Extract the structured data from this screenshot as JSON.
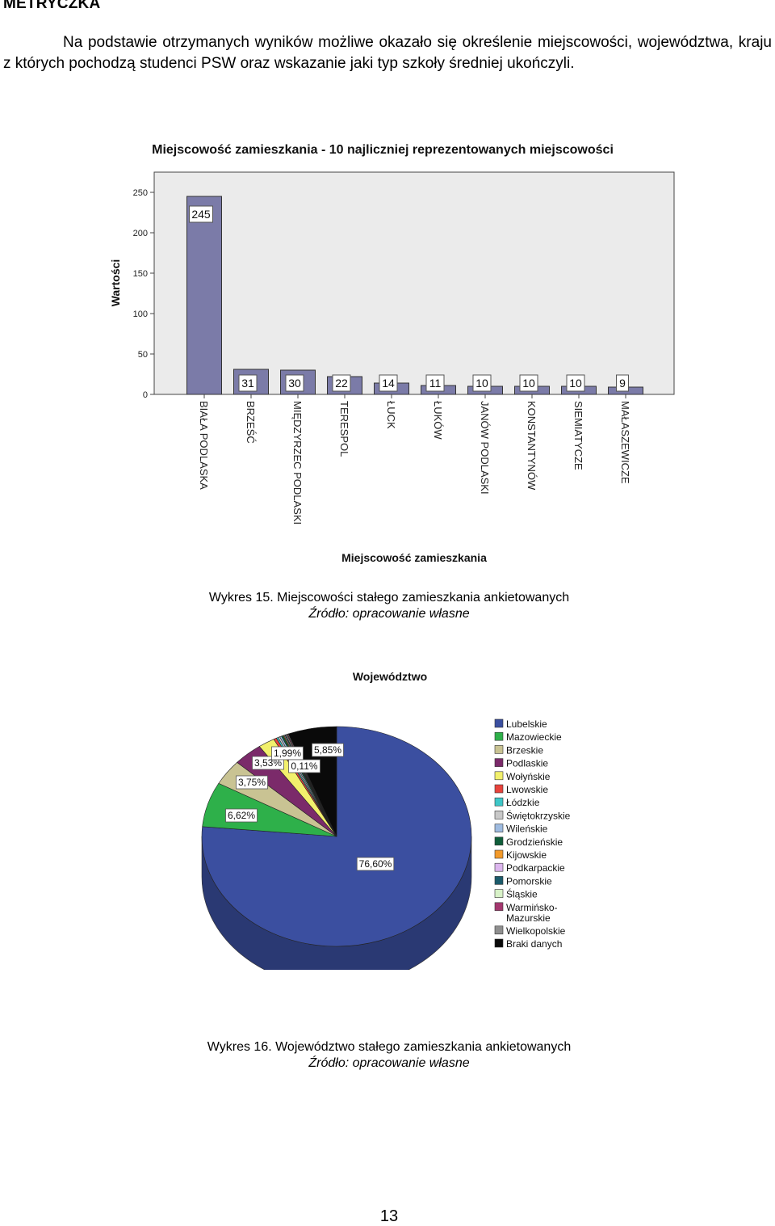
{
  "header": {
    "section_title": "METRYCZKA",
    "intro_text": "Na podstawie otrzymanych wyników możliwe okazało się określenie miejscowości, województwa, kraju z których pochodzą studenci PSW oraz wskazanie jaki typ szkoły średniej ukończyli."
  },
  "chart_data": [
    {
      "type": "bar",
      "title": "Miejscowość zamieszkania - 10 najliczniej reprezentowanych miejscowości",
      "xlabel": "Miejscowość zamieszkania",
      "ylabel": "Wartości",
      "categories": [
        "BIAŁA PODLASKA",
        "BRZEŚĆ",
        "MIĘDZYRZEC PODLASKI",
        "TERESPOL",
        "ŁUCK",
        "ŁUKÓW",
        "JANÓW PODLASKI",
        "KONSTANTYNÓW",
        "SIEMIATYCZE",
        "MAŁASZEWICZE"
      ],
      "values": [
        245,
        31,
        30,
        22,
        14,
        11,
        10,
        10,
        10,
        9
      ],
      "ylim": [
        0,
        275
      ],
      "yticks": [
        0,
        50,
        100,
        150,
        200,
        250
      ],
      "bar_color": "#7b7ba8",
      "background": "#ebebeb",
      "grid": false
    },
    {
      "type": "pie",
      "title": "Województwo",
      "legend_position": "right",
      "slices": [
        {
          "label": "Lubelskie",
          "value": 76.6,
          "value_label": "76,60%",
          "color": "#3b4fa0"
        },
        {
          "label": "Mazowieckie",
          "value": 6.62,
          "value_label": "6,62%",
          "color": "#2eb04a"
        },
        {
          "label": "Brzeskie",
          "value": 3.75,
          "value_label": "3,75%",
          "color": "#c9c393"
        },
        {
          "label": "Podlaskie",
          "value": 3.53,
          "value_label": "3,53%",
          "color": "#7b2a6a"
        },
        {
          "label": "Wołyńskie",
          "value": 1.99,
          "value_label": "1,99%",
          "color": "#f2f06c"
        },
        {
          "label": "Lwowskie",
          "value": 0.35,
          "value_label": "",
          "color": "#e8433c"
        },
        {
          "label": "Łódzkie",
          "value": 0.22,
          "value_label": "",
          "color": "#3ec7c8"
        },
        {
          "label": "Świętokrzyskie",
          "value": 0.22,
          "value_label": "",
          "color": "#c8c8c8"
        },
        {
          "label": "Wileńskie",
          "value": 0.22,
          "value_label": "",
          "color": "#9ebbe0"
        },
        {
          "label": "Grodzieńskie",
          "value": 0.22,
          "value_label": "",
          "color": "#0f5e3a"
        },
        {
          "label": "Kijowskie",
          "value": 0.11,
          "value_label": "",
          "color": "#f39a2a"
        },
        {
          "label": "Podkarpackie",
          "value": 0.11,
          "value_label": "",
          "color": "#dcb6ee"
        },
        {
          "label": "Pomorskie",
          "value": 0.11,
          "value_label": "",
          "color": "#1c5b6b"
        },
        {
          "label": "Śląskie",
          "value": 0.11,
          "value_label": "",
          "color": "#d8f2c8"
        },
        {
          "label": "Warmińsko-Mazurskie",
          "value": 0.11,
          "value_label": "0,11%",
          "color": "#a4376f"
        },
        {
          "label": "Wielkopolskie",
          "value": 0.11,
          "value_label": "",
          "color": "#8f8f8f"
        },
        {
          "label": "Braki danych",
          "value": 5.85,
          "value_label": "5,85%",
          "color": "#0a0a0a"
        }
      ]
    }
  ],
  "captions": {
    "chart1_title": "Wykres 15. Miejscowości stałego zamieszkania ankietowanych",
    "chart1_source": "Źródło: opracowanie własne",
    "chart2_title": "Wykres 16. Województwo stałego zamieszkania ankietowanych",
    "chart2_source": "Źródło: opracowanie własne"
  },
  "footer": {
    "page_number": "13"
  }
}
